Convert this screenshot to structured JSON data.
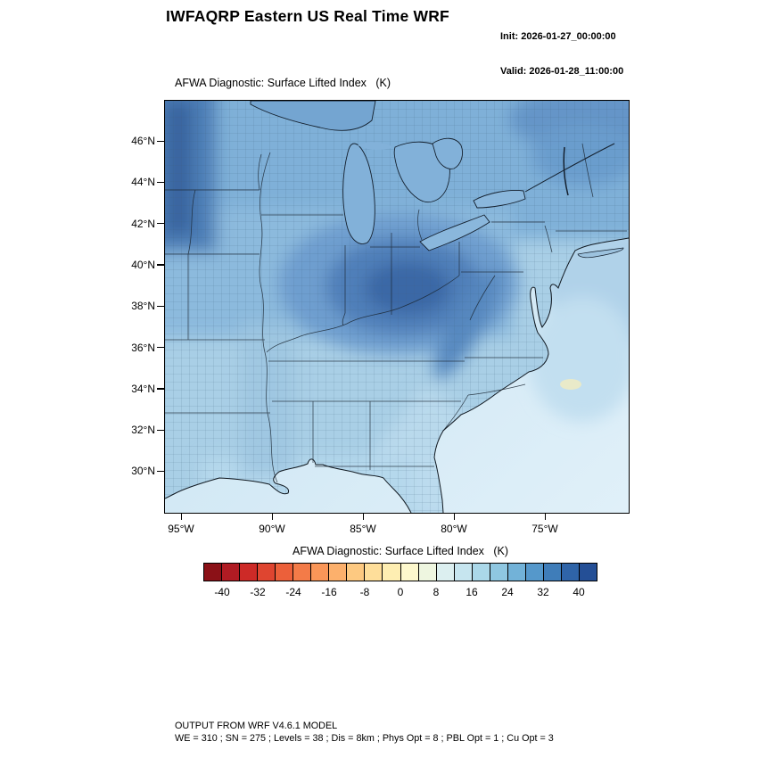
{
  "header": {
    "title": "IWFAQRP Eastern US Real Time WRF",
    "init_label": "Init: 2026-01-27_00:00:00",
    "valid_label": "Valid: 2026-01-28_11:00:00"
  },
  "map": {
    "title": "AFWA Diagnostic: Surface Lifted Index   (K)",
    "lat_ticks": [
      "46°N",
      "44°N",
      "42°N",
      "40°N",
      "38°N",
      "36°N",
      "34°N",
      "32°N",
      "30°N"
    ],
    "lon_ticks": [
      "95°W",
      "90°W",
      "85°W",
      "80°W",
      "75°W"
    ]
  },
  "colorbar": {
    "label": "AFWA Diagnostic: Surface Lifted Index   (K)",
    "tick_labels": [
      "-40",
      "-32",
      "-24",
      "-16",
      "-8",
      "0",
      "8",
      "16",
      "24",
      "32",
      "40"
    ],
    "min": -44,
    "max": 44,
    "step": 4,
    "colors": [
      "#8b1117",
      "#b01b23",
      "#cd2a27",
      "#df4530",
      "#ec603a",
      "#f37b48",
      "#f99658",
      "#fcb06c",
      "#fdc981",
      "#fede9a",
      "#feeeb2",
      "#fdf8cd",
      "#eef6e0",
      "#dceff0",
      "#c6e5ef",
      "#abd8e9",
      "#8fc7e1",
      "#72b2d8",
      "#5598cb",
      "#3f7db9",
      "#2f64a8",
      "#244f96"
    ]
  },
  "footer": {
    "line1": "OUTPUT FROM WRF V4.6.1 MODEL",
    "line2": "WE = 310 ; SN = 275 ; Levels = 38 ; Dis = 8km ; Phys Opt = 8 ; PBL Opt = 1 ; Cu Opt = 3"
  }
}
